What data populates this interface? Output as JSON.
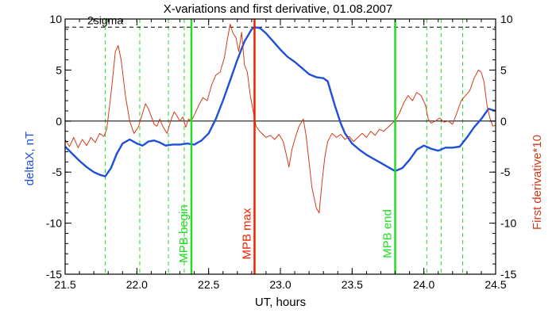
{
  "chart_data": {
    "type": "line",
    "title": "X-variations and first derivative, 01.08.2007",
    "xlabel": "UT, hours",
    "ylabel_left": "deltaX, nT",
    "ylabel_right": "First derivative*10",
    "xlim": [
      21.5,
      24.5
    ],
    "ylim_left": [
      -15,
      10
    ],
    "ylim_right": [
      -15,
      10
    ],
    "x_ticks": [
      "21.5",
      "22.0",
      "22.5",
      "23.0",
      "23.5",
      "24.0",
      "24.5"
    ],
    "y_ticks_left": [
      "-15",
      "-10",
      "-5",
      "0",
      "5",
      "10"
    ],
    "y_ticks_right": [
      "-15",
      "-10",
      "-5",
      "0",
      "5",
      "10"
    ],
    "grid": false,
    "colors": {
      "deltaX": "#1f4fd6",
      "derivative": "#d43a1a",
      "mpb_lines": "#22dd22",
      "max_line": "#ee2200",
      "axes": "#000000"
    },
    "threshold": {
      "label": "2sigma",
      "value": 9.2
    },
    "zero_line": 0,
    "markers": [
      {
        "label": "MPB begin",
        "x": 22.38,
        "color": "#22dd22"
      },
      {
        "label": "MPB max",
        "x": 22.82,
        "color": "#ee2200"
      },
      {
        "label": "MPB end",
        "x": 23.8,
        "color": "#22dd22"
      }
    ],
    "dashed_x": [
      21.78,
      22.02,
      22.22,
      22.33,
      24.02,
      24.12,
      24.27
    ],
    "series": [
      {
        "key": "deltaX",
        "axis": "left",
        "points": [
          [
            21.5,
            -2.5
          ],
          [
            21.55,
            -3.2
          ],
          [
            21.6,
            -3.9
          ],
          [
            21.65,
            -4.5
          ],
          [
            21.7,
            -5.0
          ],
          [
            21.75,
            -5.3
          ],
          [
            21.78,
            -5.4
          ],
          [
            21.82,
            -4.6
          ],
          [
            21.86,
            -3.2
          ],
          [
            21.9,
            -2.2
          ],
          [
            21.95,
            -1.8
          ],
          [
            22.0,
            -2.2
          ],
          [
            22.04,
            -2.4
          ],
          [
            22.08,
            -2.0
          ],
          [
            22.12,
            -1.9
          ],
          [
            22.16,
            -2.1
          ],
          [
            22.2,
            -2.4
          ],
          [
            22.25,
            -2.3
          ],
          [
            22.3,
            -2.3
          ],
          [
            22.35,
            -2.2
          ],
          [
            22.4,
            -2.3
          ],
          [
            22.45,
            -1.9
          ],
          [
            22.5,
            -1.2
          ],
          [
            22.55,
            0.2
          ],
          [
            22.6,
            2.0
          ],
          [
            22.65,
            4.0
          ],
          [
            22.7,
            6.0
          ],
          [
            22.75,
            7.8
          ],
          [
            22.8,
            9.0
          ],
          [
            22.82,
            9.2
          ],
          [
            22.86,
            9.1
          ],
          [
            22.9,
            8.6
          ],
          [
            22.95,
            7.8
          ],
          [
            23.0,
            7.0
          ],
          [
            23.05,
            6.3
          ],
          [
            23.1,
            5.8
          ],
          [
            23.15,
            5.2
          ],
          [
            23.2,
            4.6
          ],
          [
            23.25,
            4.3
          ],
          [
            23.3,
            4.2
          ],
          [
            23.33,
            3.9
          ],
          [
            23.38,
            1.5
          ],
          [
            23.42,
            -0.2
          ],
          [
            23.45,
            -1.2
          ],
          [
            23.5,
            -2.2
          ],
          [
            23.55,
            -2.8
          ],
          [
            23.6,
            -3.3
          ],
          [
            23.65,
            -3.7
          ],
          [
            23.7,
            -4.1
          ],
          [
            23.75,
            -4.5
          ],
          [
            23.8,
            -4.9
          ],
          [
            23.85,
            -4.6
          ],
          [
            23.9,
            -3.8
          ],
          [
            23.95,
            -2.8
          ],
          [
            24.0,
            -2.4
          ],
          [
            24.05,
            -2.7
          ],
          [
            24.1,
            -2.9
          ],
          [
            24.15,
            -2.6
          ],
          [
            24.2,
            -2.6
          ],
          [
            24.25,
            -2.5
          ],
          [
            24.3,
            -1.6
          ],
          [
            24.35,
            -0.6
          ],
          [
            24.4,
            0.2
          ],
          [
            24.45,
            1.2
          ],
          [
            24.5,
            1.0
          ]
        ]
      },
      {
        "key": "derivative",
        "axis": "right",
        "points": [
          [
            21.5,
            -1.8
          ],
          [
            21.53,
            -2.5
          ],
          [
            21.56,
            -1.6
          ],
          [
            21.59,
            -2.6
          ],
          [
            21.62,
            -1.8
          ],
          [
            21.65,
            -2.4
          ],
          [
            21.68,
            -1.6
          ],
          [
            21.71,
            -2.1
          ],
          [
            21.74,
            -1.2
          ],
          [
            21.77,
            -1.5
          ],
          [
            21.79,
            -0.8
          ],
          [
            21.81,
            1.5
          ],
          [
            21.83,
            4.0
          ],
          [
            21.85,
            6.8
          ],
          [
            21.87,
            7.4
          ],
          [
            21.89,
            6.0
          ],
          [
            21.92,
            2.5
          ],
          [
            21.95,
            0.0
          ],
          [
            21.98,
            -1.2
          ],
          [
            22.01,
            -0.6
          ],
          [
            22.04,
            0.8
          ],
          [
            22.06,
            1.7
          ],
          [
            22.08,
            1.2
          ],
          [
            22.1,
            0.5
          ],
          [
            22.12,
            -0.3
          ],
          [
            22.14,
            -0.5
          ],
          [
            22.16,
            0.2
          ],
          [
            22.18,
            -0.5
          ],
          [
            22.21,
            -1.2
          ],
          [
            22.24,
            0.2
          ],
          [
            22.26,
            0.9
          ],
          [
            22.28,
            0.5
          ],
          [
            22.3,
            0.0
          ],
          [
            22.32,
            0.4
          ],
          [
            22.34,
            -0.6
          ],
          [
            22.36,
            0.2
          ],
          [
            22.38,
            0.0
          ],
          [
            22.4,
            0.6
          ],
          [
            22.43,
            1.5
          ],
          [
            22.46,
            2.3
          ],
          [
            22.49,
            2.0
          ],
          [
            22.52,
            3.5
          ],
          [
            22.55,
            4.5
          ],
          [
            22.58,
            4.8
          ],
          [
            22.61,
            6.2
          ],
          [
            22.63,
            8.0
          ],
          [
            22.65,
            9.5
          ],
          [
            22.67,
            8.6
          ],
          [
            22.69,
            8.2
          ],
          [
            22.71,
            6.8
          ],
          [
            22.73,
            8.7
          ],
          [
            22.75,
            5.5
          ],
          [
            22.77,
            4.8
          ],
          [
            22.79,
            2.5
          ],
          [
            22.81,
            1.0
          ],
          [
            22.83,
            -0.5
          ],
          [
            22.85,
            -0.9
          ],
          [
            22.87,
            -1.2
          ],
          [
            22.9,
            -1.6
          ],
          [
            22.93,
            -1.4
          ],
          [
            22.96,
            -1.8
          ],
          [
            22.99,
            -1.3
          ],
          [
            23.02,
            -2.0
          ],
          [
            23.04,
            -3.2
          ],
          [
            23.06,
            -4.5
          ],
          [
            23.08,
            -2.8
          ],
          [
            23.1,
            -1.8
          ],
          [
            23.13,
            -0.5
          ],
          [
            23.16,
            0.2
          ],
          [
            23.18,
            -1.5
          ],
          [
            23.2,
            -4.0
          ],
          [
            23.22,
            -6.5
          ],
          [
            23.25,
            -8.5
          ],
          [
            23.27,
            -9.0
          ],
          [
            23.29,
            -6.0
          ],
          [
            23.31,
            -3.5
          ],
          [
            23.33,
            -2.0
          ],
          [
            23.36,
            -1.2
          ],
          [
            23.39,
            -1.6
          ],
          [
            23.42,
            -1.3
          ],
          [
            23.45,
            -1.8
          ],
          [
            23.48,
            -1.5
          ],
          [
            23.51,
            -2.0
          ],
          [
            23.54,
            -1.6
          ],
          [
            23.57,
            -1.2
          ],
          [
            23.6,
            -1.6
          ],
          [
            23.63,
            -1.0
          ],
          [
            23.66,
            -1.4
          ],
          [
            23.69,
            -0.8
          ],
          [
            23.72,
            -1.0
          ],
          [
            23.75,
            -0.6
          ],
          [
            23.78,
            -0.2
          ],
          [
            23.8,
            0.0
          ],
          [
            23.83,
            0.8
          ],
          [
            23.86,
            1.8
          ],
          [
            23.89,
            2.5
          ],
          [
            23.92,
            2.0
          ],
          [
            23.95,
            2.8
          ],
          [
            23.98,
            2.5
          ],
          [
            24.01,
            1.6
          ],
          [
            24.03,
            0.2
          ],
          [
            24.05,
            -0.2
          ],
          [
            24.08,
            0.0
          ],
          [
            24.11,
            0.3
          ],
          [
            24.14,
            -0.1
          ],
          [
            24.17,
            0.0
          ],
          [
            24.2,
            -0.3
          ],
          [
            24.23,
            0.8
          ],
          [
            24.26,
            2.0
          ],
          [
            24.29,
            2.5
          ],
          [
            24.32,
            3.0
          ],
          [
            24.35,
            4.2
          ],
          [
            24.38,
            5.0
          ],
          [
            24.4,
            4.8
          ],
          [
            24.42,
            3.8
          ],
          [
            24.44,
            1.5
          ],
          [
            24.46,
            0.3
          ],
          [
            24.48,
            -0.5
          ],
          [
            24.5,
            -0.4
          ]
        ]
      }
    ]
  }
}
